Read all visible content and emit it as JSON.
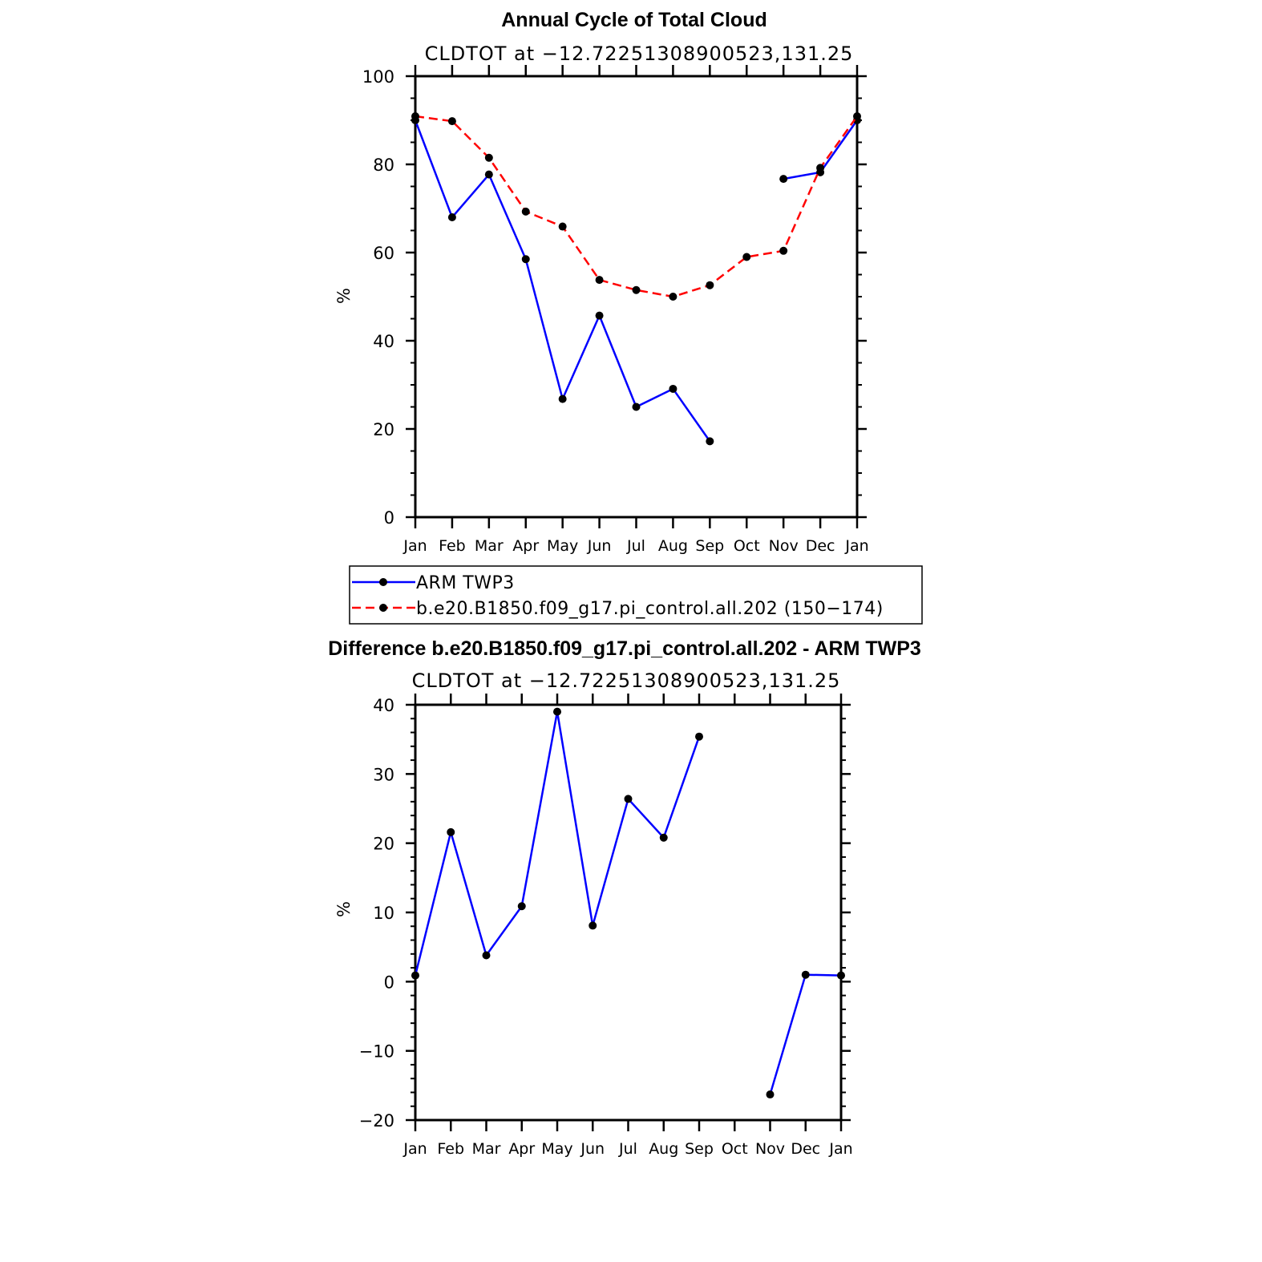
{
  "colors": {
    "obs": "#0000ff",
    "model": "#ff0000",
    "marker": "#000000",
    "axis": "#000000"
  },
  "chart_data": [
    {
      "type": "line",
      "title": "Annual Cycle of Total Cloud",
      "subtitle": "CLDTOT at −12.72251308900523,131.25",
      "ylabel": "%",
      "xlabel": "",
      "ylim": [
        0,
        100
      ],
      "yticks": [
        0,
        20,
        40,
        60,
        80,
        100
      ],
      "yticklabels": [
        "0",
        "20",
        "40",
        "60",
        "80",
        "100"
      ],
      "categories": [
        "Jan",
        "Feb",
        "Mar",
        "Apr",
        "May",
        "Jun",
        "Jul",
        "Aug",
        "Sep",
        "Oct",
        "Nov",
        "Dec",
        "Jan"
      ],
      "grid": false,
      "legend_position": "below",
      "series": [
        {
          "name": "ARM TWP3",
          "style": "solid",
          "values": [
            90.0,
            68.0,
            77.7,
            58.5,
            26.8,
            45.7,
            25.0,
            29.1,
            17.2,
            null,
            76.7,
            78.2,
            90.0
          ]
        },
        {
          "name": "b.e20.B1850.f09_g17.pi_control.all.202 (150−174)",
          "style": "dashed",
          "values": [
            90.9,
            89.8,
            81.5,
            69.3,
            65.9,
            53.8,
            51.5,
            50.0,
            52.6,
            59.0,
            60.4,
            79.2,
            90.9
          ]
        }
      ]
    },
    {
      "type": "line",
      "title": "Difference b.e20.B1850.f09_g17.pi_control.all.202 - ARM TWP3",
      "subtitle": "CLDTOT at −12.72251308900523,131.25",
      "ylabel": "%",
      "xlabel": "",
      "ylim": [
        -20,
        40
      ],
      "yticks": [
        -20,
        -10,
        0,
        10,
        20,
        30,
        40
      ],
      "yticklabels": [
        "−20",
        "−10",
        "0",
        "10",
        "20",
        "30",
        "40"
      ],
      "categories": [
        "Jan",
        "Feb",
        "Mar",
        "Apr",
        "May",
        "Jun",
        "Jul",
        "Aug",
        "Sep",
        "Oct",
        "Nov",
        "Dec",
        "Jan"
      ],
      "grid": false,
      "series": [
        {
          "style": "solid",
          "values": [
            0.9,
            21.6,
            3.8,
            10.9,
            39.0,
            8.1,
            26.4,
            20.8,
            35.4,
            null,
            -16.3,
            1.0,
            0.9
          ]
        }
      ]
    }
  ]
}
